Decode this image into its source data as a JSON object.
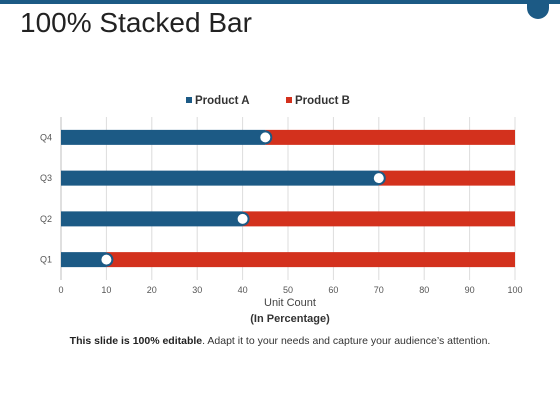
{
  "slide": {
    "title": "100% Stacked Bar",
    "caption_bold": "This slide is 100% editable",
    "caption_rest": ". Adapt it to your needs and capture your audience’s attention."
  },
  "chart_data": {
    "type": "bar",
    "orientation": "horizontal",
    "stacked": "percent",
    "categories": [
      "Q1",
      "Q2",
      "Q3",
      "Q4"
    ],
    "series": [
      {
        "name": "Product A",
        "values": [
          10,
          40,
          70,
          45
        ],
        "color": "#1c5a85"
      },
      {
        "name": "Product B",
        "values": [
          90,
          60,
          30,
          55
        ],
        "color": "#d3311d"
      }
    ],
    "xlim": [
      0,
      100
    ],
    "xticks": [
      0,
      10,
      20,
      30,
      40,
      50,
      60,
      70,
      80,
      90,
      100
    ],
    "xlabel": "Unit Count",
    "xlabel_sub": "(In Percentage)",
    "legend": "top",
    "grid": true,
    "marker": "circle at series boundary"
  }
}
